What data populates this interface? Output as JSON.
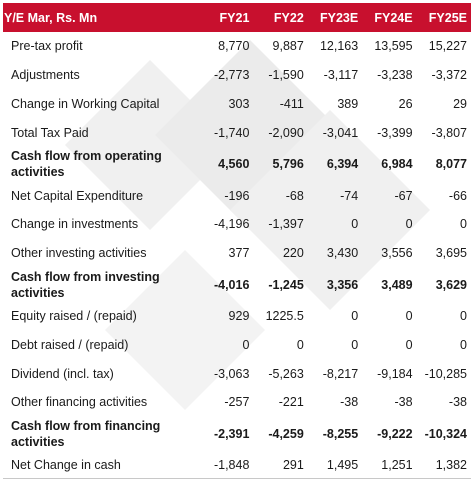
{
  "table": {
    "header": {
      "label": "Y/E Mar, Rs. Mn",
      "years": [
        "FY21",
        "FY22",
        "FY23E",
        "FY24E",
        "FY25E"
      ]
    },
    "rows": [
      {
        "label": "Pre-tax profit",
        "values": [
          "8,770",
          "9,887",
          "12,163",
          "13,595",
          "15,227"
        ],
        "bold": false
      },
      {
        "label": "Adjustments",
        "values": [
          "-2,773",
          "-1,590",
          "-3,117",
          "-3,238",
          "-3,372"
        ],
        "bold": false
      },
      {
        "label": "Change in Working Capital",
        "values": [
          "303",
          "-411",
          "389",
          "26",
          "29"
        ],
        "bold": false
      },
      {
        "label": "Total Tax Paid",
        "values": [
          "-1,740",
          "-2,090",
          "-3,041",
          "-3,399",
          "-3,807"
        ],
        "bold": false
      },
      {
        "label": "Cash flow from operating activities",
        "values": [
          "4,560",
          "5,796",
          "6,394",
          "6,984",
          "8,077"
        ],
        "bold": true
      },
      {
        "label": "Net Capital Expenditure",
        "values": [
          "-196",
          "-68",
          "-74",
          "-67",
          "-66"
        ],
        "bold": false
      },
      {
        "label": "Change in investments",
        "values": [
          "-4,196",
          "-1,397",
          "0",
          "0",
          "0"
        ],
        "bold": false
      },
      {
        "label": "Other investing activities",
        "values": [
          "377",
          "220",
          "3,430",
          "3,556",
          "3,695"
        ],
        "bold": false
      },
      {
        "label": "Cash flow from investing activities",
        "values": [
          "-4,016",
          "-1,245",
          "3,356",
          "3,489",
          "3,629"
        ],
        "bold": true
      },
      {
        "label": "Equity raised / (repaid)",
        "values": [
          "929",
          "1225.5",
          "0",
          "0",
          "0"
        ],
        "bold": false
      },
      {
        "label": "Debt raised / (repaid)",
        "values": [
          "0",
          "0",
          "0",
          "0",
          "0"
        ],
        "bold": false
      },
      {
        "label": "Dividend (incl. tax)",
        "values": [
          "-3,063",
          "-5,263",
          "-8,217",
          "-9,184",
          "-10,285"
        ],
        "bold": false
      },
      {
        "label": "Other financing activities",
        "values": [
          "-257",
          "-221",
          "-38",
          "-38",
          "-38"
        ],
        "bold": false
      },
      {
        "label": "Cash flow from financing activities",
        "values": [
          "-2,391",
          "-4,259",
          "-8,255",
          "-9,222",
          "-10,324"
        ],
        "bold": true
      },
      {
        "label": "Net Change in cash",
        "values": [
          "-1,848",
          "291",
          "1,495",
          "1,251",
          "1,382"
        ],
        "bold": false
      }
    ]
  },
  "colors": {
    "header_bg": "#c8102e",
    "header_text": "#ffffff",
    "watermark": "#f0f0f0"
  }
}
